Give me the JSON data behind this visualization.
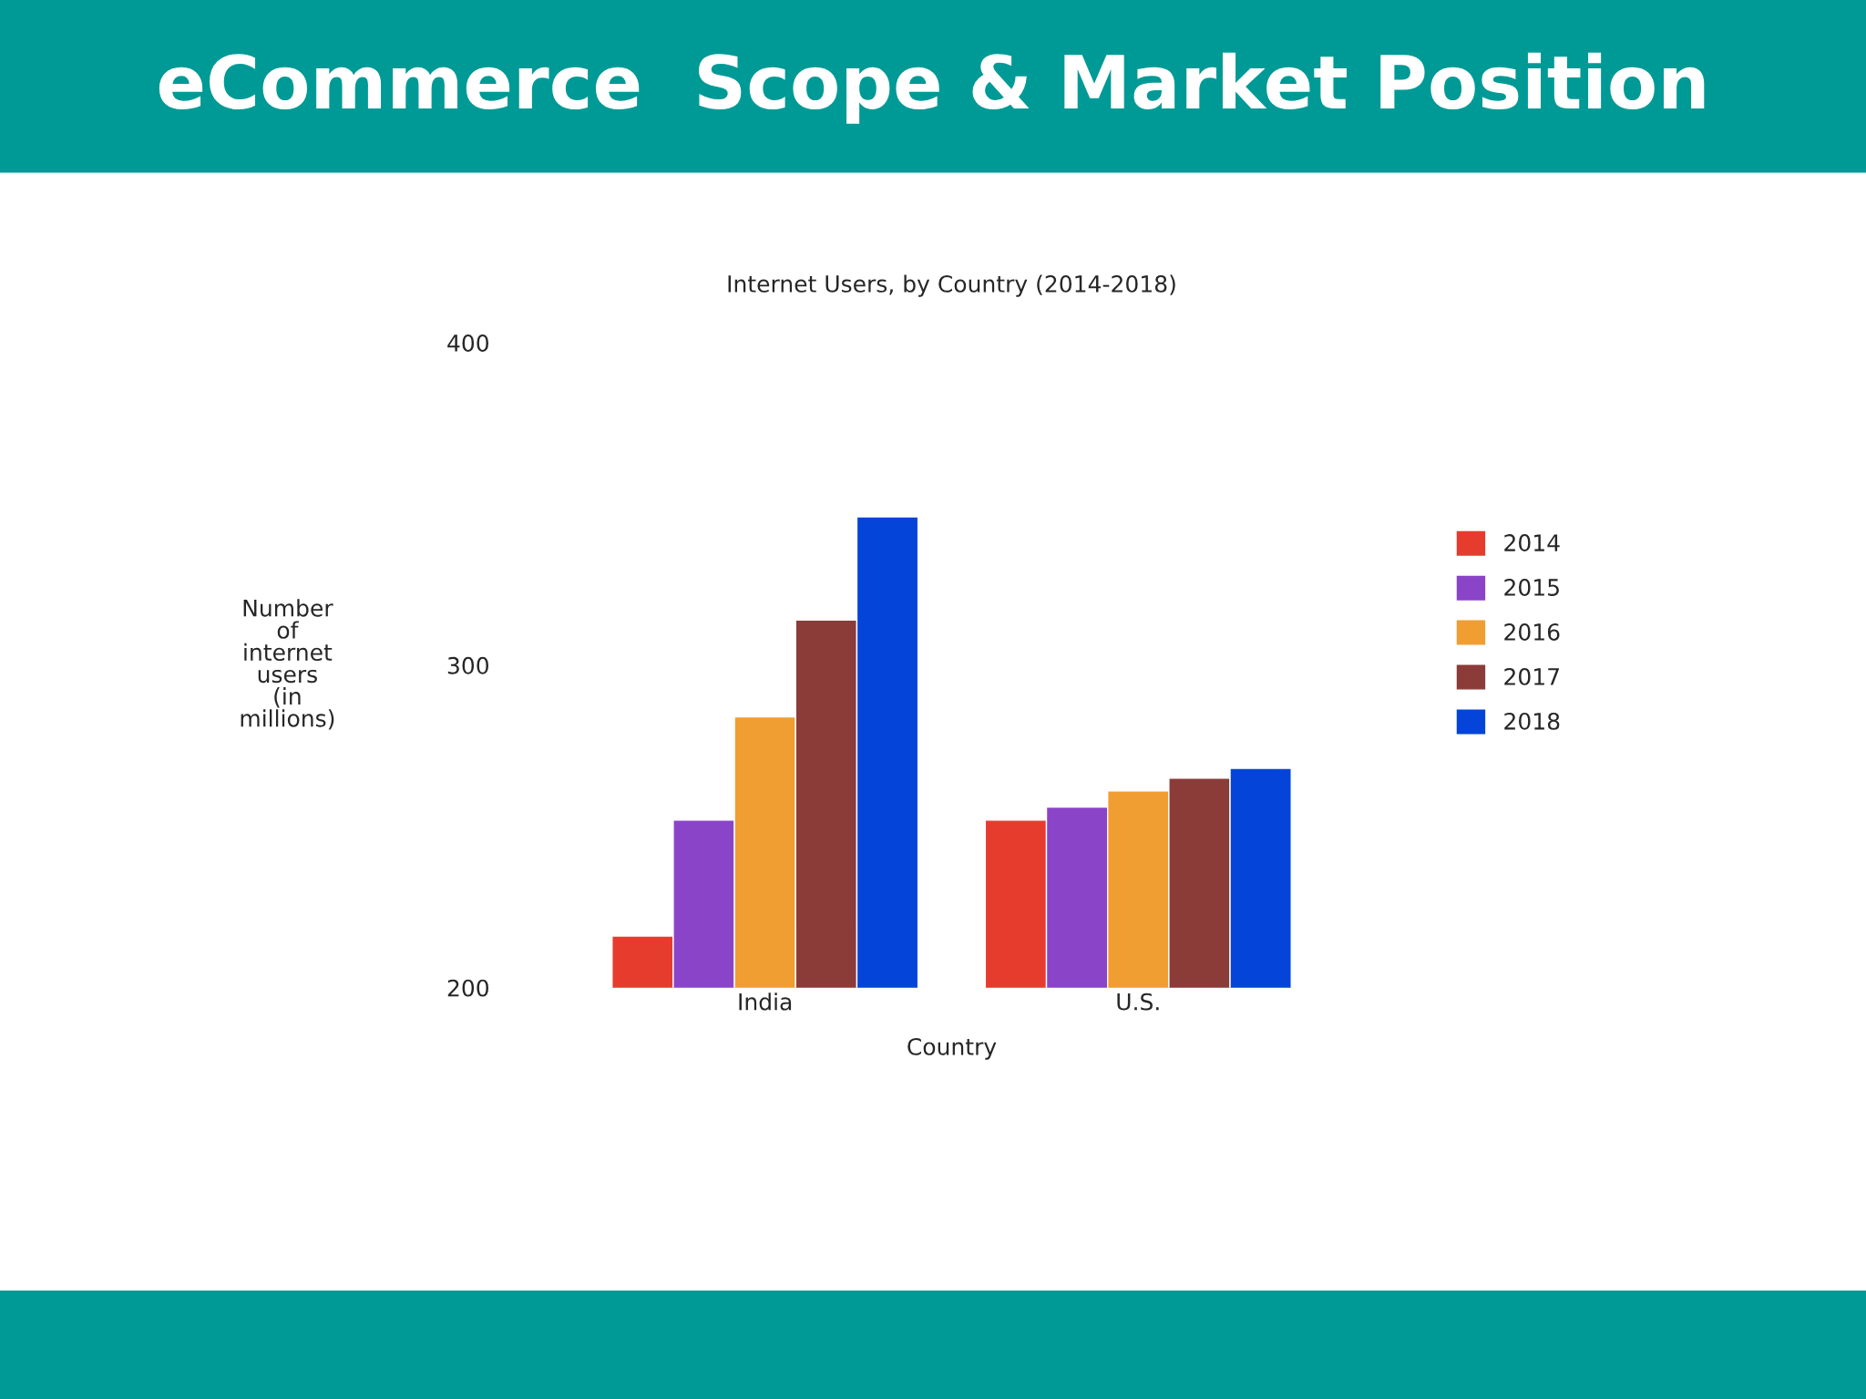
{
  "chart_data": {
    "type": "bar",
    "title": "eCommerce  Scope & Market Position",
    "subtitle": "Internet Users, by Country (2014-2018)",
    "xlabel": "Country",
    "ylabel": "Number\nof\ninternet\nusers\n(in\nmillions)",
    "categories": [
      "India",
      "U.S."
    ],
    "series": [
      {
        "name": "2014",
        "color": "#e53c2e",
        "values": [
          216,
          252
        ]
      },
      {
        "name": "2015",
        "color": "#8a44c8",
        "values": [
          252,
          256
        ]
      },
      {
        "name": "2016",
        "color": "#f09d32",
        "values": [
          284,
          261
        ]
      },
      {
        "name": "2017",
        "color": "#8b3b38",
        "values": [
          314,
          265
        ]
      },
      {
        "name": "2018",
        "color": "#0444d8",
        "values": [
          346,
          268
        ]
      }
    ],
    "ylim": [
      200,
      400
    ],
    "yticks": [
      200,
      300,
      400
    ],
    "grid": false,
    "legend": "right"
  }
}
